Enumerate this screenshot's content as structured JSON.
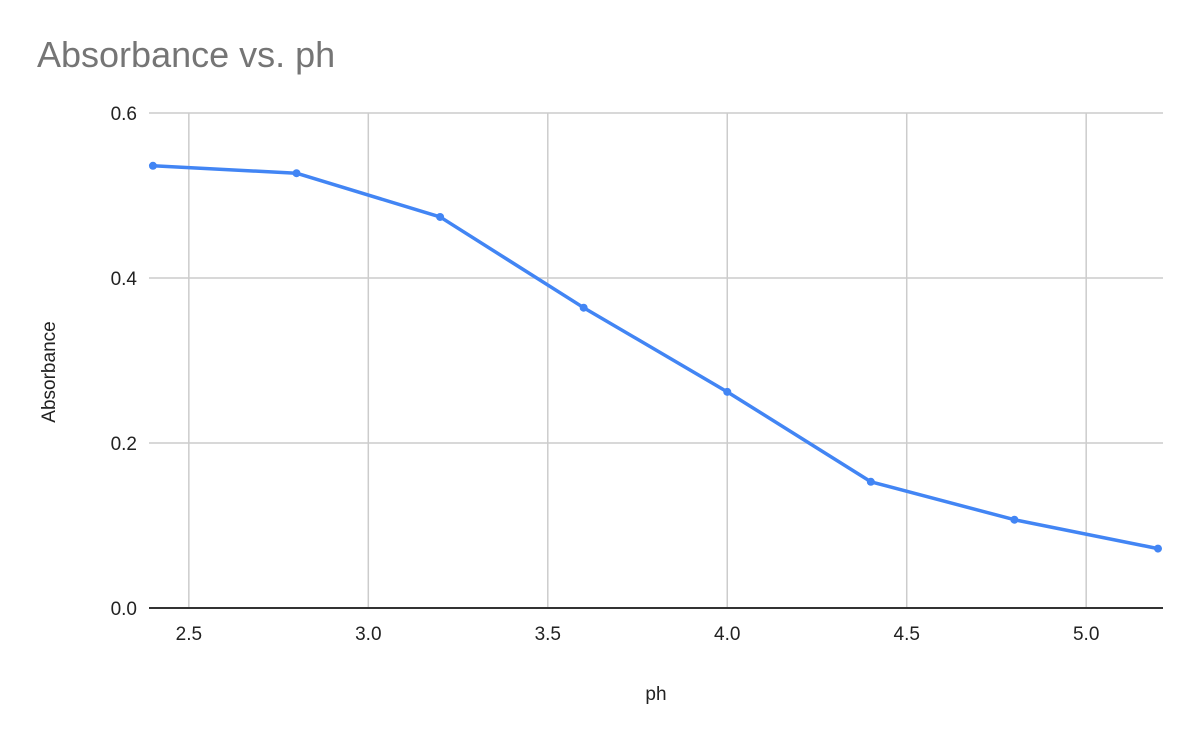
{
  "chart_data": {
    "type": "line",
    "title": "Absorbance vs. ph",
    "xlabel": "ph",
    "ylabel": "Absorbance",
    "x": [
      2.4,
      2.8,
      3.2,
      3.6,
      4.0,
      4.4,
      4.8,
      5.2
    ],
    "series": [
      {
        "name": "Absorbance",
        "values": [
          0.536,
          0.527,
          0.474,
          0.364,
          0.262,
          0.153,
          0.107,
          0.072
        ],
        "color": "#4285f4"
      }
    ],
    "xlim": [
      2.389,
      5.214
    ],
    "ylim": [
      0,
      0.6
    ],
    "xticks": [
      2.5,
      3.0,
      3.5,
      4.0,
      4.5,
      5.0
    ],
    "xtick_labels": [
      "2.5",
      "3.0",
      "3.5",
      "4.0",
      "4.5",
      "5.0"
    ],
    "yticks": [
      0.0,
      0.2,
      0.4,
      0.6
    ],
    "ytick_labels": [
      "0.0",
      "0.2",
      "0.4",
      "0.6"
    ],
    "grid": true,
    "legend": "none"
  },
  "colors": {
    "line": "#4285f4",
    "grid": "#cccccc",
    "baseline": "#333333",
    "title": "#757575",
    "text": "#222222"
  }
}
